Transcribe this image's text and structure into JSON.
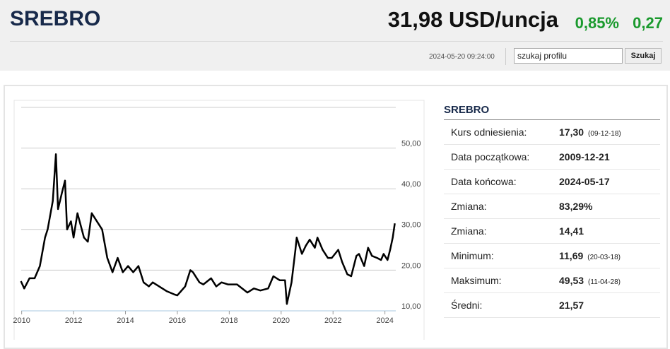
{
  "header": {
    "title": "SREBRO",
    "price": "31,98 USD/uncja",
    "change_percent": "0,85%",
    "change": "0,27",
    "datetime": "2024-05-20 09:24:00",
    "search_placeholder": "szukaj profilu",
    "search_button": "Szukaj"
  },
  "chart_data": {
    "type": "line",
    "color": "#000000",
    "grid": true,
    "x": [
      2009.97,
      2010.1,
      2010.3,
      2010.5,
      2010.7,
      2010.9,
      2011.0,
      2011.2,
      2011.32,
      2011.4,
      2011.55,
      2011.67,
      2011.75,
      2011.9,
      2012.0,
      2012.15,
      2012.4,
      2012.55,
      2012.7,
      2012.9,
      2013.1,
      2013.3,
      2013.5,
      2013.7,
      2013.9,
      2014.1,
      2014.3,
      2014.5,
      2014.7,
      2014.9,
      2015.05,
      2015.3,
      2015.6,
      2015.9,
      2016.0,
      2016.3,
      2016.5,
      2016.6,
      2016.85,
      2017.0,
      2017.3,
      2017.5,
      2017.7,
      2017.95,
      2018.3,
      2018.7,
      2018.95,
      2019.2,
      2019.5,
      2019.7,
      2019.95,
      2020.15,
      2020.22,
      2020.4,
      2020.55,
      2020.6,
      2020.8,
      2020.95,
      2021.1,
      2021.3,
      2021.4,
      2021.6,
      2021.8,
      2021.95,
      2022.2,
      2022.35,
      2022.55,
      2022.7,
      2022.9,
      2023.0,
      2023.2,
      2023.35,
      2023.5,
      2023.7,
      2023.85,
      2023.95,
      2024.1,
      2024.2,
      2024.3,
      2024.38
    ],
    "values": [
      17.3,
      15.5,
      18,
      18,
      21,
      28,
      30,
      37,
      48.5,
      35,
      39,
      42,
      30,
      32,
      28,
      34,
      28,
      27,
      34,
      32,
      30,
      23,
      19.5,
      23,
      19.5,
      21,
      19.5,
      21,
      17,
      16,
      17,
      16,
      14.8,
      14,
      13.8,
      16,
      20,
      19.5,
      17,
      16.5,
      18,
      16,
      17,
      16.5,
      16.5,
      14.5,
      15.5,
      15,
      15.5,
      18.5,
      17.5,
      17.5,
      11.7,
      17,
      25,
      28,
      24,
      26,
      27.5,
      25.5,
      28,
      25,
      23,
      23,
      25,
      22,
      19,
      18.5,
      23.5,
      24,
      21,
      25.5,
      23.5,
      23,
      22.5,
      24,
      22.5,
      25,
      28,
      31.5
    ],
    "xlim": [
      2009.9,
      2024.5
    ],
    "xticks": [
      2010,
      2012,
      2014,
      2016,
      2018,
      2020,
      2022,
      2024
    ],
    "ylim": [
      10,
      60
    ],
    "yticks": [
      {
        "value": 10,
        "label": "10,00"
      },
      {
        "value": 20,
        "label": "20,00"
      },
      {
        "value": 30,
        "label": "30,00"
      },
      {
        "value": 40,
        "label": "40,00"
      },
      {
        "value": 50,
        "label": "50,00"
      }
    ]
  },
  "summary": {
    "title": "SREBRO",
    "rows": [
      {
        "label": "Kurs odniesienia:",
        "value": "17,30",
        "note": "(09-12-18)"
      },
      {
        "label": "Data początkowa:",
        "value": "2009-12-21"
      },
      {
        "label": "Data końcowa:",
        "value": "2024-05-17"
      },
      {
        "label": "Zmiana:",
        "value": "83,29%"
      },
      {
        "label": "Zmiana:",
        "value": "14,41"
      },
      {
        "label": "Minimum:",
        "value": "11,69",
        "note": "(20-03-18)"
      },
      {
        "label": "Maksimum:",
        "value": "49,53",
        "note": "(11-04-28)"
      },
      {
        "label": "Średni:",
        "value": "21,57"
      }
    ]
  }
}
